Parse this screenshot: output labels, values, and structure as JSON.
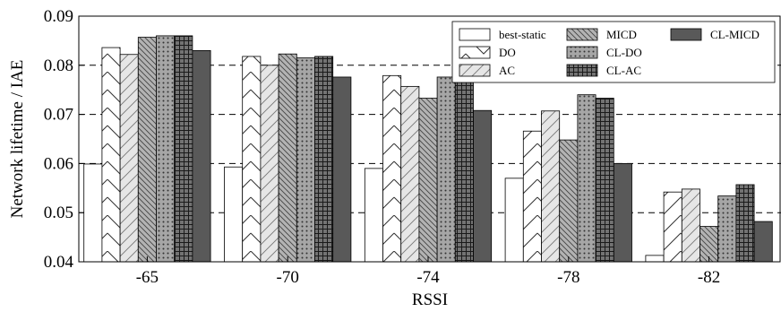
{
  "chart_data": {
    "type": "bar",
    "xlabel": "RSSI",
    "ylabel": "Network lifetime / IAE",
    "ylim": [
      0.04,
      0.09
    ],
    "yticks": [
      "0.04",
      "0.05",
      "0.06",
      "0.07",
      "0.08",
      "0.09"
    ],
    "categories": [
      "-65",
      "-70",
      "-74",
      "-78",
      "-82"
    ],
    "grid": "horizontal-dashed",
    "legend_position": "top-right",
    "series": [
      {
        "name": "best-static",
        "pattern": "none",
        "fill": "#ffffff",
        "values": [
          0.0599,
          0.0593,
          0.059,
          0.057,
          0.0413
        ]
      },
      {
        "name": "DO",
        "pattern": "chevron",
        "fill": "#ffffff",
        "values": [
          0.0836,
          0.0818,
          0.0779,
          0.0666,
          0.0542
        ]
      },
      {
        "name": "AC",
        "pattern": "diagonal-light",
        "fill": "#e6e6e6",
        "values": [
          0.0822,
          0.08,
          0.0757,
          0.0707,
          0.0548
        ]
      },
      {
        "name": "MICD",
        "pattern": "diagonal-dense",
        "fill": "#b3b3b3",
        "values": [
          0.0857,
          0.0823,
          0.0733,
          0.0648,
          0.0472
        ]
      },
      {
        "name": "CL-DO",
        "pattern": "dots",
        "fill": "#a6a6a6",
        "values": [
          0.086,
          0.0815,
          0.0776,
          0.074,
          0.0534
        ]
      },
      {
        "name": "CL-AC",
        "pattern": "grid",
        "fill": "#737373",
        "values": [
          0.086,
          0.0818,
          0.0785,
          0.0733,
          0.0557
        ]
      },
      {
        "name": "CL-MICD",
        "pattern": "solid",
        "fill": "#595959",
        "values": [
          0.083,
          0.0776,
          0.0708,
          0.06,
          0.0482
        ]
      }
    ]
  }
}
